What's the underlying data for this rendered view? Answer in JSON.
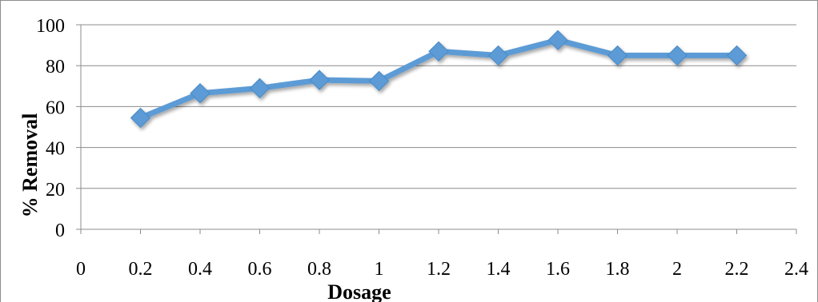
{
  "chart_data": {
    "type": "line",
    "title": "",
    "xlabel": "Dosage",
    "ylabel": "% Removal",
    "xlim": [
      0,
      2.4
    ],
    "ylim": [
      0,
      100
    ],
    "x_ticks": [
      "0",
      "0.2",
      "0.4",
      "0.6",
      "0.8",
      "1",
      "1.2",
      "1.4",
      "1.6",
      "1.8",
      "2",
      "2.2",
      "2.4"
    ],
    "y_ticks": [
      "0",
      "20",
      "40",
      "60",
      "80",
      "100"
    ],
    "grid": "horizontal",
    "legend": "none",
    "series": [
      {
        "x": [
          0.2,
          0.4,
          0.6,
          0.8,
          1.0,
          1.2,
          1.4,
          1.6,
          1.8,
          2.0,
          2.2
        ],
        "y": [
          54.5,
          66.5,
          69,
          73,
          72.5,
          87,
          85,
          92.5,
          85,
          85,
          85
        ],
        "color": "#5b9bd5",
        "marker": "diamond"
      }
    ]
  }
}
